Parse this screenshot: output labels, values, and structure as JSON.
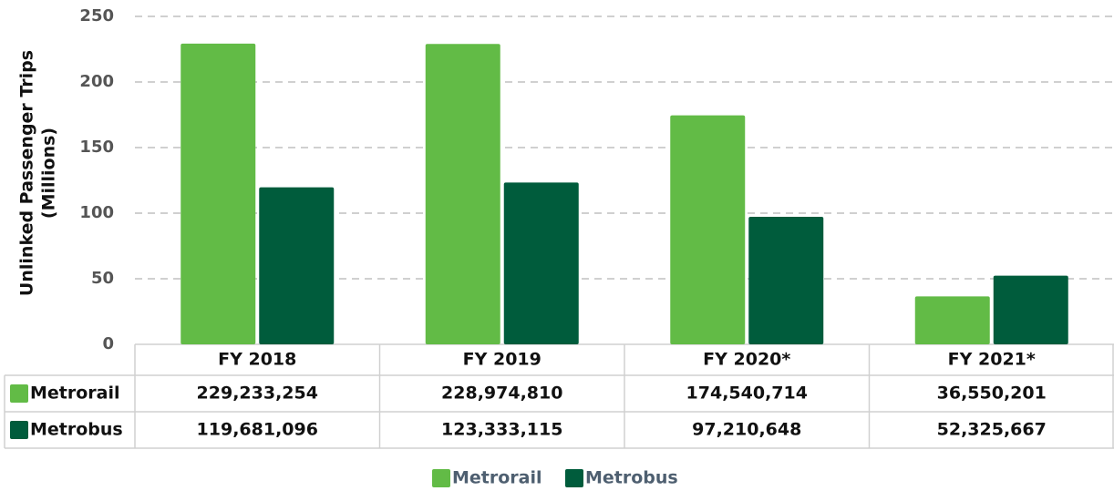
{
  "chart_data": {
    "type": "bar",
    "y_label": [
      "Unlinked Passenger Trips",
      "(Millions)"
    ],
    "categories": [
      "FY 2018",
      "FY 2019",
      "FY 2020*",
      "FY 2021*"
    ],
    "series": [
      {
        "name": "Metrorail",
        "color": "#62bb46",
        "values": [
          229.233254,
          228.97481,
          174.540714,
          36.550201
        ],
        "value_labels": [
          "229,233,254",
          "228,974,810",
          "174,540,714",
          "36,550,201"
        ]
      },
      {
        "name": "Metrobus",
        "color": "#005c3c",
        "values": [
          119.681096,
          123.333115,
          97.210648,
          52.325667
        ],
        "value_labels": [
          "119,681,096",
          "123,333,115",
          "97,210,648",
          "52,325,667"
        ]
      }
    ],
    "ylim": [
      0,
      250
    ],
    "yticks": [
      0,
      50,
      100,
      150,
      200,
      250
    ],
    "grid": true,
    "legend": "bottom"
  }
}
